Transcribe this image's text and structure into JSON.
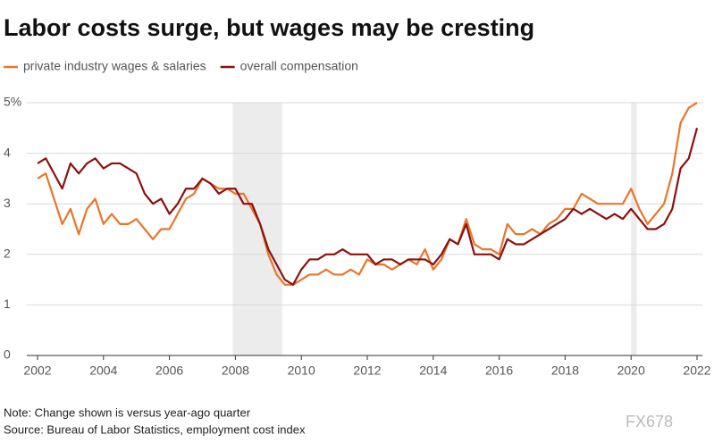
{
  "chart_data": {
    "type": "line",
    "title": "Labor costs surge, but wages may be cresting",
    "note": "Note: Change shown is versus year-ago quarter",
    "source": "Source: Bureau of Labor Statistics, employment cost index",
    "watermark": "FX678",
    "x": [
      2002,
      2002.25,
      2002.5,
      2002.75,
      2003,
      2003.25,
      2003.5,
      2003.75,
      2004,
      2004.25,
      2004.5,
      2004.75,
      2005,
      2005.25,
      2005.5,
      2005.75,
      2006,
      2006.25,
      2006.5,
      2006.75,
      2007,
      2007.25,
      2007.5,
      2007.75,
      2008,
      2008.25,
      2008.5,
      2008.75,
      2009,
      2009.25,
      2009.5,
      2009.75,
      2010,
      2010.25,
      2010.5,
      2010.75,
      2011,
      2011.25,
      2011.5,
      2011.75,
      2012,
      2012.25,
      2012.5,
      2012.75,
      2013,
      2013.25,
      2013.5,
      2013.75,
      2014,
      2014.25,
      2014.5,
      2014.75,
      2015,
      2015.25,
      2015.5,
      2015.75,
      2016,
      2016.25,
      2016.5,
      2016.75,
      2017,
      2017.25,
      2017.5,
      2017.75,
      2018,
      2018.25,
      2018.5,
      2018.75,
      2019,
      2019.25,
      2019.5,
      2019.75,
      2020,
      2020.25,
      2020.5,
      2020.75,
      2021,
      2021.25,
      2021.5,
      2021.75,
      2022
    ],
    "series": [
      {
        "name": "private industry wages & salaries",
        "color": "#e8762b",
        "values": [
          3.5,
          3.6,
          3.1,
          2.6,
          2.9,
          2.4,
          2.9,
          3.1,
          2.6,
          2.8,
          2.6,
          2.6,
          2.7,
          2.5,
          2.3,
          2.5,
          2.5,
          2.8,
          3.1,
          3.2,
          3.5,
          3.4,
          3.3,
          3.3,
          3.2,
          3.2,
          2.9,
          2.6,
          2.0,
          1.6,
          1.4,
          1.4,
          1.5,
          1.6,
          1.6,
          1.7,
          1.6,
          1.6,
          1.7,
          1.6,
          1.9,
          1.8,
          1.8,
          1.7,
          1.8,
          1.9,
          1.8,
          2.1,
          1.7,
          1.9,
          2.3,
          2.2,
          2.7,
          2.2,
          2.1,
          2.1,
          2.0,
          2.6,
          2.4,
          2.4,
          2.5,
          2.4,
          2.6,
          2.7,
          2.9,
          2.9,
          3.2,
          3.1,
          3.0,
          3.0,
          3.0,
          3.0,
          3.3,
          2.9,
          2.6,
          2.8,
          3.0,
          3.6,
          4.6,
          4.9,
          5.0
        ]
      },
      {
        "name": "overall compensation",
        "color": "#8b1010",
        "values": [
          3.8,
          3.9,
          3.6,
          3.3,
          3.8,
          3.6,
          3.8,
          3.9,
          3.7,
          3.8,
          3.8,
          3.7,
          3.6,
          3.2,
          3.0,
          3.1,
          2.8,
          3.0,
          3.3,
          3.3,
          3.5,
          3.4,
          3.2,
          3.3,
          3.3,
          3.0,
          3.0,
          2.6,
          2.1,
          1.8,
          1.5,
          1.4,
          1.7,
          1.9,
          1.9,
          2.0,
          2.0,
          2.1,
          2.0,
          2.0,
          2.0,
          1.8,
          1.9,
          1.9,
          1.8,
          1.9,
          1.9,
          1.9,
          1.8,
          2.0,
          2.3,
          2.2,
          2.6,
          2.0,
          2.0,
          2.0,
          1.9,
          2.3,
          2.2,
          2.2,
          2.3,
          2.4,
          2.5,
          2.6,
          2.7,
          2.9,
          2.8,
          2.9,
          2.8,
          2.7,
          2.8,
          2.7,
          2.9,
          2.7,
          2.5,
          2.5,
          2.6,
          2.9,
          3.7,
          3.9,
          4.5
        ]
      }
    ],
    "recessions": [
      [
        2007.92,
        2009.42
      ],
      [
        2020.0,
        2020.17
      ]
    ],
    "xlim": [
      2002,
      2022
    ],
    "xticks": [
      2002,
      2004,
      2006,
      2008,
      2010,
      2012,
      2014,
      2016,
      2018,
      2020,
      2022
    ],
    "ylim": [
      0,
      5
    ],
    "yticks": [
      0,
      1,
      2,
      3,
      4,
      {
        "value": 5,
        "label": "5%"
      }
    ],
    "grid": true
  }
}
